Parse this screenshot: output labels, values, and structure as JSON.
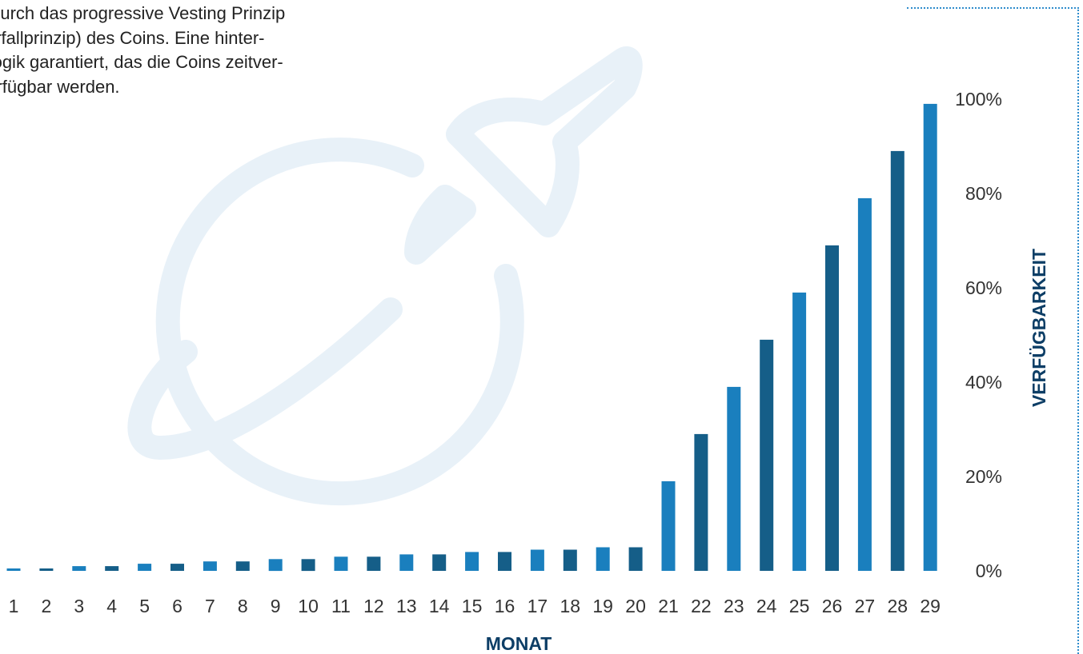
{
  "intro_text": {
    "lines": [
      "eil durch das progressive Vesting Prinzip",
      "sserfallprinzip) des Coins.  Eine hinter-",
      "e Logik garantiert, das die Coins zeitver-",
      "t verfügbar werden."
    ]
  },
  "colors": {
    "bar_light": "#1a7fbe",
    "bar_dark": "#155e88",
    "axis_title": "#0d3e66",
    "tick_text": "#333333",
    "watermark": "#e8f1f8",
    "frame": "#2f8ccc"
  },
  "watermark_icon": "rocket-planet-icon",
  "chart_data": {
    "type": "bar",
    "categories": [
      "1",
      "2",
      "3",
      "4",
      "5",
      "6",
      "7",
      "8",
      "9",
      "10",
      "11",
      "12",
      "13",
      "14",
      "15",
      "16",
      "17",
      "18",
      "19",
      "20",
      "21",
      "22",
      "23",
      "24",
      "25",
      "26",
      "27",
      "28",
      "29"
    ],
    "values": [
      0.5,
      0.5,
      1,
      1,
      1.5,
      1.5,
      2,
      2,
      2.5,
      2.5,
      3,
      3,
      3.5,
      3.5,
      4,
      4,
      4.5,
      4.5,
      5,
      5,
      19,
      29,
      39,
      49,
      59,
      69,
      79,
      89,
      99
    ],
    "xlabel": "MONAT",
    "ylabel": "VERFÜGBARKEIT",
    "ylim": [
      0,
      100
    ],
    "y_ticks": [
      "0%",
      "20%",
      "40%",
      "60%",
      "80%",
      "100%"
    ],
    "y_axis_position": "right",
    "grid": false,
    "bar_colors": "alternating light/dark blue"
  }
}
